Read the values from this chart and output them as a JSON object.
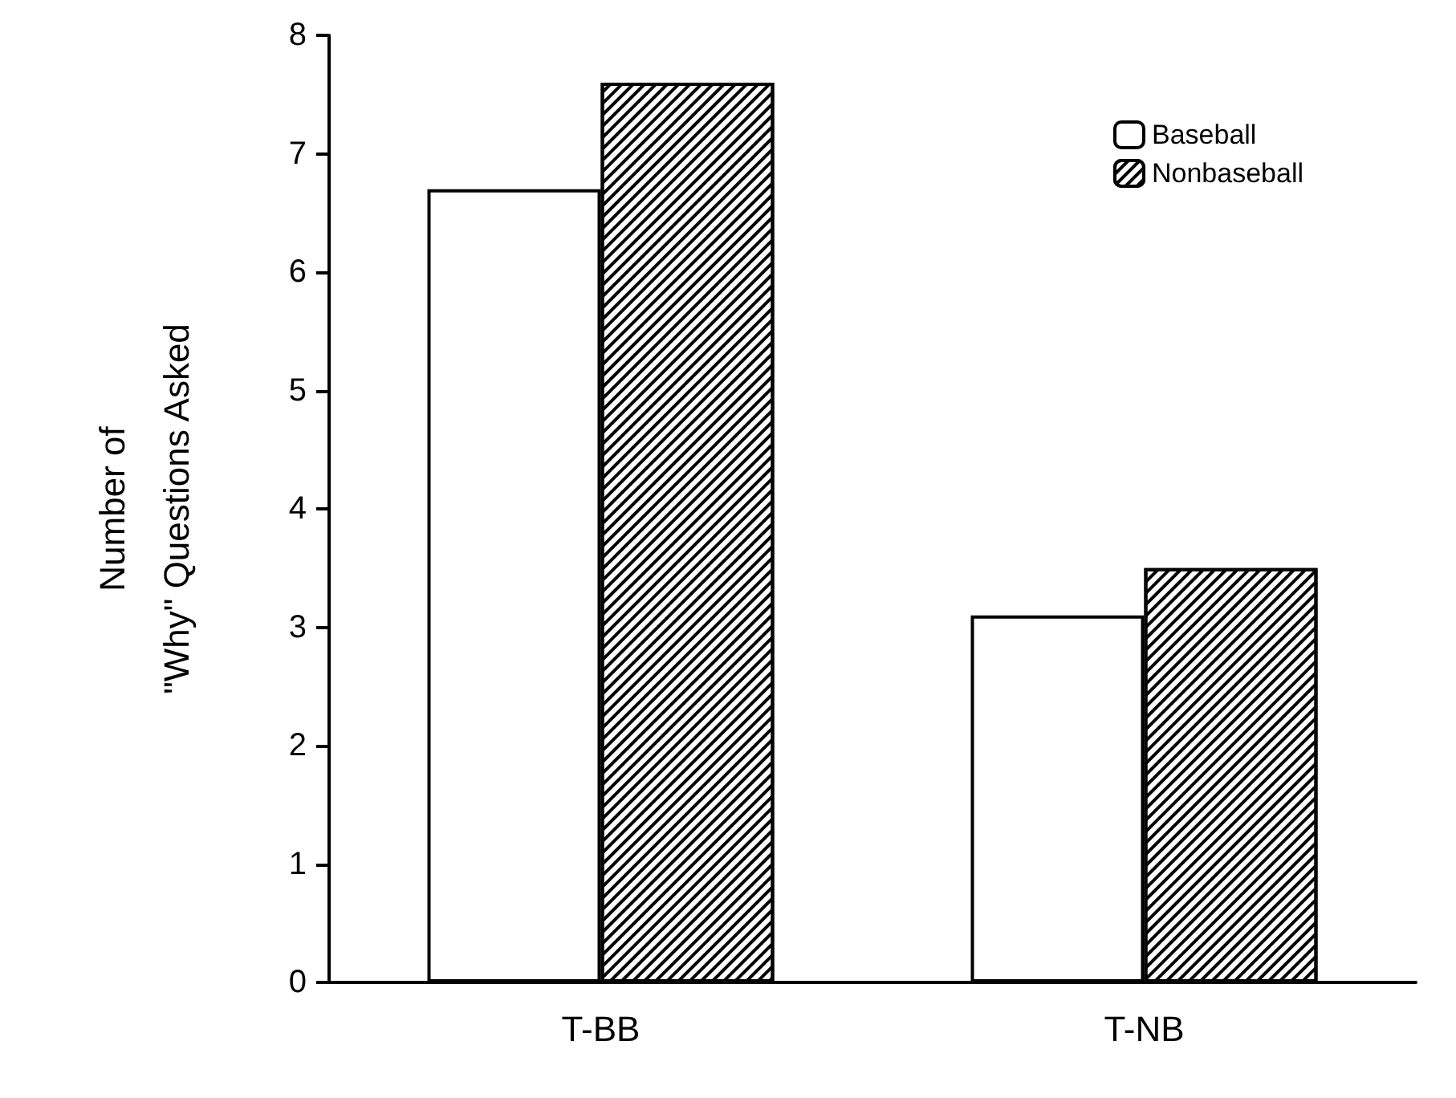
{
  "chart_data": {
    "type": "bar",
    "ylabel": "Number of\n\"Why\" Questions Asked",
    "categories": [
      "T-BB",
      "T-NB"
    ],
    "series": [
      {
        "name": "Baseball",
        "color": "#ffffff",
        "values": [
          6.7,
          3.1
        ]
      },
      {
        "name": "Nonbaseball",
        "color": "#000000",
        "values": [
          7.6,
          3.5
        ]
      }
    ],
    "ylim": [
      0,
      8
    ],
    "yticks": [
      0,
      1,
      2,
      3,
      4,
      5,
      6,
      7,
      8
    ],
    "legend": "top right"
  }
}
